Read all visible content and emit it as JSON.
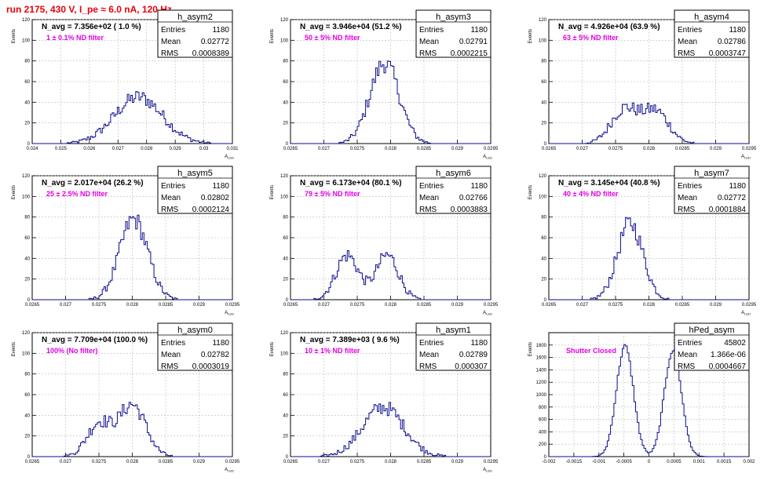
{
  "header": {
    "run_title": "run 2175,   430 V, I_pe ≈ 6.0 nA, 120 Hz"
  },
  "chart_data": [
    {
      "type": "histogram",
      "name": "h_asym2",
      "navg_label": "N_avg = 7.356e+02 ( 1.0 %)",
      "filter_label": "1 ± 0.1% ND filter",
      "stats": {
        "Entries": "1180",
        "Mean": "0.02772",
        "RMS": "0.0008389"
      },
      "ylabel": "Events",
      "xlabel": "A_LED",
      "xlim": [
        0.024,
        0.031
      ],
      "ylim": [
        0,
        120
      ],
      "xticks": [
        "0.024",
        "0.025",
        "0.026",
        "0.027",
        "0.028",
        "0.029",
        "0.03",
        "0.031"
      ],
      "yticks": [
        "0",
        "20",
        "40",
        "60",
        "80",
        "100",
        "120"
      ],
      "profile": {
        "kind": "single",
        "peaks": [
          {
            "mu": 0.02772,
            "sigma": 0.00084,
            "amp": 45
          }
        ]
      }
    },
    {
      "type": "histogram",
      "name": "h_asym3",
      "navg_label": "N_avg = 3.946e+04 (51.2 %)",
      "filter_label": "50 ± 5% ND filter",
      "stats": {
        "Entries": "1180",
        "Mean": "0.02791",
        "RMS": "0.0002215"
      },
      "ylabel": "Events",
      "xlabel": "A_LED",
      "xlim": [
        0.0265,
        0.0295
      ],
      "ylim": [
        0,
        120
      ],
      "xticks": [
        "0.0265",
        "0.027",
        "0.0275",
        "0.028",
        "0.0285",
        "0.029",
        "0.0295"
      ],
      "yticks": [
        "0",
        "20",
        "40",
        "60",
        "80",
        "100",
        "120"
      ],
      "profile": {
        "kind": "single",
        "peaks": [
          {
            "mu": 0.02791,
            "sigma": 0.00022,
            "amp": 78
          }
        ]
      }
    },
    {
      "type": "histogram",
      "name": "h_asym4",
      "navg_label": "N_avg = 4.926e+04 (63.9 %)",
      "filter_label": "63 ± 5% ND filter",
      "stats": {
        "Entries": "1180",
        "Mean": "0.02786",
        "RMS": "0.0003747"
      },
      "ylabel": "Events",
      "xlabel": "A_LED",
      "xlim": [
        0.0265,
        0.0295
      ],
      "ylim": [
        0,
        120
      ],
      "xticks": [
        "0.0265",
        "0.027",
        "0.0275",
        "0.028",
        "0.0285",
        "0.029",
        "0.0295"
      ],
      "yticks": [
        "0",
        "20",
        "40",
        "60",
        "80",
        "100",
        "120"
      ],
      "profile": {
        "kind": "double",
        "peaks": [
          {
            "mu": 0.02763,
            "sigma": 0.0002,
            "amp": 33
          },
          {
            "mu": 0.0281,
            "sigma": 0.0002,
            "amp": 31
          }
        ]
      }
    },
    {
      "type": "histogram",
      "name": "h_asym5",
      "navg_label": "N_avg = 2.017e+04 (26.2 %)",
      "filter_label": "25 ± 2.5% ND filter",
      "stats": {
        "Entries": "1180",
        "Mean": "0.02802",
        "RMS": "0.0002124"
      },
      "ylabel": "Events",
      "xlabel": "A_LED",
      "xlim": [
        0.0265,
        0.0295
      ],
      "ylim": [
        0,
        120
      ],
      "xticks": [
        "0.0265",
        "0.027",
        "0.0275",
        "0.028",
        "0.0285",
        "0.029",
        "0.0295"
      ],
      "yticks": [
        "0",
        "20",
        "40",
        "60",
        "80",
        "100",
        "120"
      ],
      "profile": {
        "kind": "single",
        "peaks": [
          {
            "mu": 0.02802,
            "sigma": 0.00021,
            "amp": 78
          }
        ]
      }
    },
    {
      "type": "histogram",
      "name": "h_asym6",
      "navg_label": "N_avg = 6.173e+04 (80.1 %)",
      "filter_label": "79 ± 5% ND filter",
      "stats": {
        "Entries": "1180",
        "Mean": "0.02766",
        "RMS": "0.0003883"
      },
      "ylabel": "Events",
      "xlabel": "A_LED",
      "xlim": [
        0.0265,
        0.0295
      ],
      "ylim": [
        0,
        120
      ],
      "xticks": [
        "0.0265",
        "0.027",
        "0.0275",
        "0.028",
        "0.0285",
        "0.029",
        "0.0295"
      ],
      "yticks": [
        "0",
        "20",
        "40",
        "60",
        "80",
        "100",
        "120"
      ],
      "profile": {
        "kind": "double",
        "peaks": [
          {
            "mu": 0.02735,
            "sigma": 0.00017,
            "amp": 43
          },
          {
            "mu": 0.02795,
            "sigma": 0.00017,
            "amp": 43
          }
        ]
      }
    },
    {
      "type": "histogram",
      "name": "h_asym7",
      "navg_label": "N_avg = 3.145e+04 (40.8 %)",
      "filter_label": "40 ± 4% ND filter",
      "stats": {
        "Entries": "1180",
        "Mean": "0.02772",
        "RMS": "0.0001884"
      },
      "ylabel": "Events",
      "xlabel": "A_LED",
      "xlim": [
        0.0265,
        0.0295
      ],
      "ylim": [
        0,
        120
      ],
      "xticks": [
        "0.0265",
        "0.027",
        "0.0275",
        "0.028",
        "0.0285",
        "0.029",
        "0.0295"
      ],
      "yticks": [
        "0",
        "20",
        "40",
        "60",
        "80",
        "100",
        "120"
      ],
      "profile": {
        "kind": "single",
        "peaks": [
          {
            "mu": 0.02772,
            "sigma": 0.00019,
            "amp": 74
          }
        ]
      }
    },
    {
      "type": "histogram",
      "name": "h_asym0",
      "navg_label": "N_avg = 7.709e+04 (100.0 %)",
      "filter_label": "100% (No filter)",
      "stats": {
        "Entries": "1180",
        "Mean": "0.02782",
        "RMS": "0.0003019"
      },
      "ylabel": "Events",
      "xlabel": "A_LED",
      "xlim": [
        0.0265,
        0.0295
      ],
      "ylim": [
        0,
        120
      ],
      "xticks": [
        "0.0265",
        "0.027",
        "0.0275",
        "0.028",
        "0.0285",
        "0.029",
        "0.0295"
      ],
      "yticks": [
        "0",
        "20",
        "40",
        "60",
        "80",
        "100",
        "120"
      ],
      "profile": {
        "kind": "double",
        "peaks": [
          {
            "mu": 0.0275,
            "sigma": 0.00018,
            "amp": 32
          },
          {
            "mu": 0.028,
            "sigma": 0.0002,
            "amp": 50
          }
        ]
      }
    },
    {
      "type": "histogram",
      "name": "h_asym1",
      "navg_label": "N_avg = 7.389e+03 ( 9.6 %)",
      "filter_label": "10 ± 1% ND filter",
      "stats": {
        "Entries": "1180",
        "Mean": "0.02789",
        "RMS": "0.000307"
      },
      "ylabel": "Events",
      "xlabel": "A_LED",
      "xlim": [
        0.0265,
        0.0295
      ],
      "ylim": [
        0,
        120
      ],
      "xticks": [
        "0.0265",
        "0.027",
        "0.0275",
        "0.028",
        "0.0285",
        "0.029",
        "0.0295"
      ],
      "yticks": [
        "0",
        "20",
        "40",
        "60",
        "80",
        "100",
        "120"
      ],
      "profile": {
        "kind": "single",
        "peaks": [
          {
            "mu": 0.02789,
            "sigma": 0.00031,
            "amp": 48
          }
        ]
      }
    },
    {
      "type": "histogram",
      "name": "hPed_asym",
      "navg_label": "",
      "filter_label": "Shutter Closed",
      "stats": {
        "Entries": "45802",
        "Mean": "1.366e-06",
        "RMS": "0.0004667"
      },
      "ylabel": "Events",
      "xlabel": "",
      "xlim": [
        -0.002,
        0.002
      ],
      "ylim": [
        0,
        2000
      ],
      "xticks": [
        "-0.002",
        "-0.0015",
        "-0.001",
        "-0.0005",
        "0",
        "0.0005",
        "0.001",
        "0.0015",
        "0.002"
      ],
      "yticks": [
        "0",
        "200",
        "400",
        "600",
        "800",
        "1000",
        "1200",
        "1400",
        "1600",
        "1800"
      ],
      "profile": {
        "kind": "double",
        "peaks": [
          {
            "mu": -0.00048,
            "sigma": 0.00017,
            "amp": 1780
          },
          {
            "mu": 0.00048,
            "sigma": 0.00017,
            "amp": 1720
          }
        ]
      }
    }
  ]
}
